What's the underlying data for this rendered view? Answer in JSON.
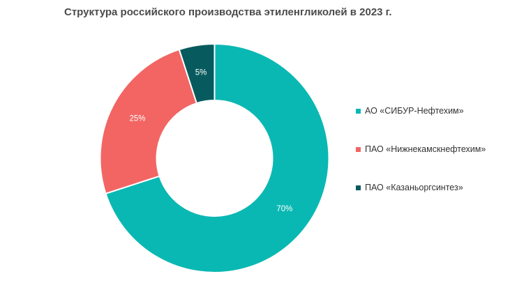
{
  "chart_data": {
    "type": "pie",
    "donut": true,
    "title": "Структура российского производства этиленгликолей в 2023 г.",
    "categories": [
      "АО «СИБУР-Нефтехим»",
      "ПАО «Нижнекамскнефтехим»",
      "ПАО «Казаньоргсинтез»"
    ],
    "values": [
      70,
      25,
      5
    ],
    "value_labels": [
      "70%",
      "25%",
      "5%"
    ],
    "colors": [
      "#0ab8b3",
      "#f26563",
      "#075b5e"
    ],
    "legend_position": "right"
  }
}
